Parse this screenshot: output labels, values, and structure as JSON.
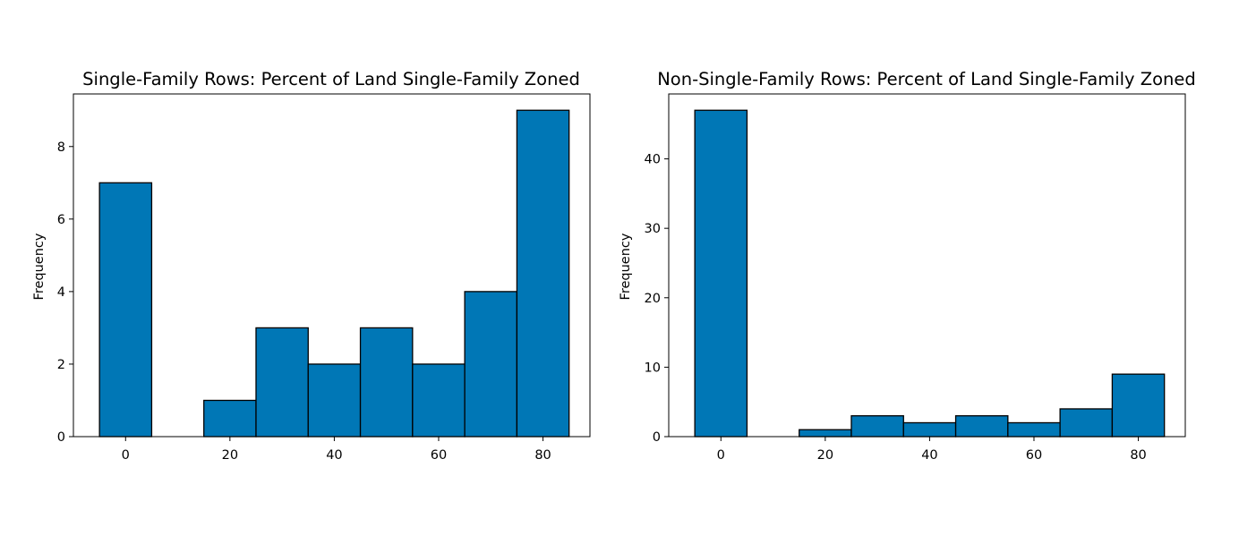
{
  "chart_data": [
    {
      "type": "bar",
      "title": "Single-Family Rows: Percent of Land Single-Family Zoned",
      "xlabel": "",
      "ylabel": "Frequency",
      "bin_edges": [
        -5,
        5,
        15,
        25,
        35,
        45,
        55,
        65,
        75,
        85
      ],
      "values": [
        7,
        0,
        1,
        3,
        2,
        3,
        2,
        4,
        9
      ],
      "xlim": [
        -10,
        89
      ],
      "ylim": [
        0,
        9.45
      ],
      "xticks": [
        0,
        20,
        40,
        60,
        80
      ],
      "yticks": [
        0,
        2,
        4,
        6,
        8
      ],
      "grid": false,
      "bar_color": "#0077b6",
      "edge_color": "#000000"
    },
    {
      "type": "bar",
      "title": "Non-Single-Family Rows: Percent of Land Single-Family Zoned",
      "xlabel": "",
      "ylabel": "Frequency",
      "bin_edges": [
        -5,
        5,
        15,
        25,
        35,
        45,
        55,
        65,
        75,
        85
      ],
      "values": [
        47,
        0,
        1,
        3,
        2,
        3,
        2,
        4,
        9
      ],
      "xlim": [
        -10,
        89
      ],
      "ylim": [
        0,
        49.35
      ],
      "xticks": [
        0,
        20,
        40,
        60,
        80
      ],
      "yticks": [
        0,
        10,
        20,
        30,
        40
      ],
      "grid": false,
      "bar_color": "#0077b6",
      "edge_color": "#000000"
    }
  ]
}
